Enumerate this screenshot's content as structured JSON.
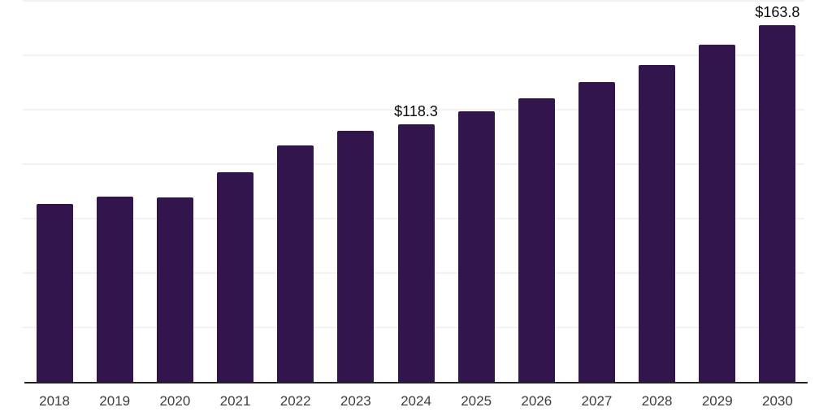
{
  "chart_data": {
    "type": "bar",
    "title": "",
    "xlabel": "",
    "ylabel": "",
    "categories": [
      "2018",
      "2019",
      "2020",
      "2021",
      "2022",
      "2023",
      "2024",
      "2025",
      "2026",
      "2027",
      "2028",
      "2029",
      "2030"
    ],
    "values": [
      81.7,
      85.1,
      84.7,
      96.3,
      108.6,
      115.3,
      118.3,
      124.2,
      130.2,
      137.7,
      145.5,
      154.8,
      163.8
    ],
    "data_labels": {
      "2024": "$118.3",
      "2030": "$163.8"
    },
    "ylim": [
      0,
      175
    ],
    "gridline_values": [
      25,
      50,
      75,
      100,
      125,
      150,
      175
    ],
    "grid": "horizontal-only",
    "legend": "none",
    "colors": {
      "bar": "#33154d",
      "axis_line": "#222222",
      "gridline": "#f2f2f2",
      "tick_label": "#3d3d3d",
      "data_label": "#0a0a0a",
      "background": "#ffffff"
    }
  }
}
